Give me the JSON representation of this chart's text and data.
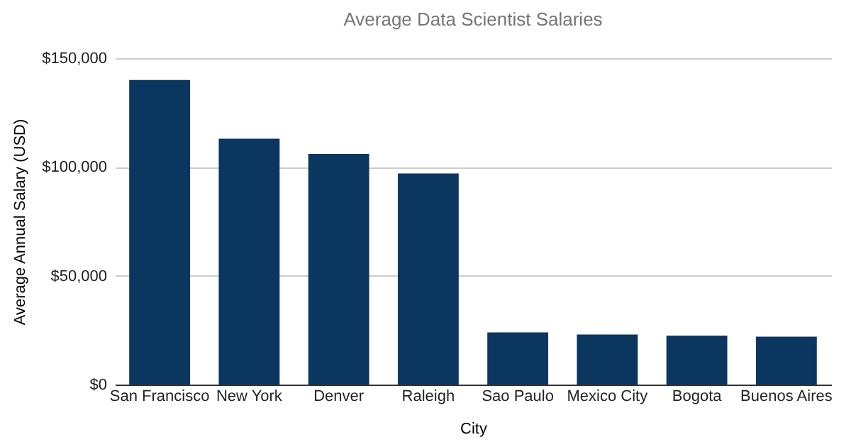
{
  "chart_data": {
    "type": "bar",
    "title": "Average Data Scientist Salaries",
    "xlabel": "City",
    "ylabel": "Average Annual Salary (USD)",
    "categories": [
      "San Francisco",
      "New York",
      "Denver",
      "Raleigh",
      "Sao Paulo",
      "Mexico City",
      "Bogota",
      "Buenos Aires"
    ],
    "values": [
      140000,
      113000,
      106000,
      97000,
      24000,
      23000,
      22500,
      22000
    ],
    "color": "#0b3660",
    "ylim": [
      0,
      150000
    ],
    "yticks": [
      {
        "value": 0,
        "label": "$0"
      },
      {
        "value": 50000,
        "label": "$50,000"
      },
      {
        "value": 100000,
        "label": "$100,000"
      },
      {
        "value": 150000,
        "label": "$150,000"
      }
    ],
    "grid": "y"
  }
}
